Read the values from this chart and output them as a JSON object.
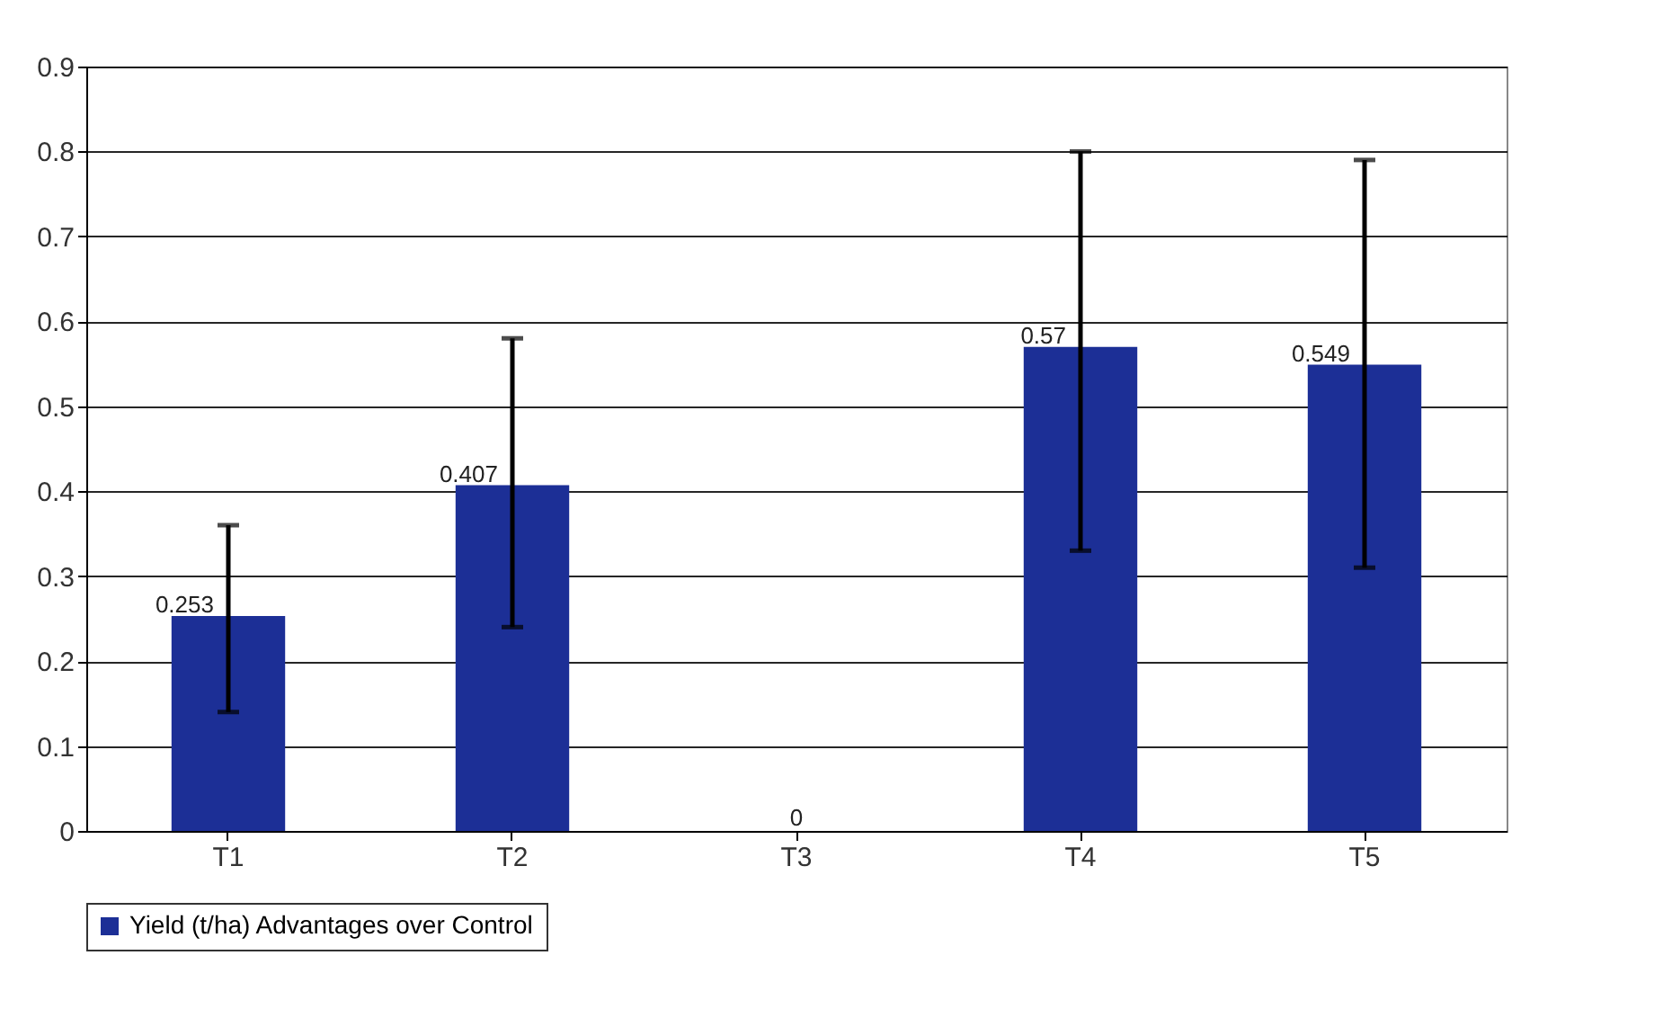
{
  "chart_data": {
    "type": "bar",
    "categories": [
      "T1",
      "T2",
      "T3",
      "T4",
      "T5"
    ],
    "series": [
      {
        "name": "Yield (t/ha) Advantages over Control",
        "color": "#1c2f96",
        "values": [
          0.253,
          0.407,
          0,
          0.57,
          0.549
        ],
        "errors": [
          [
            0.14,
            0.36
          ],
          [
            0.24,
            0.58
          ],
          null,
          [
            0.33,
            0.8
          ],
          [
            0.31,
            0.79
          ]
        ]
      }
    ],
    "ylim": [
      0,
      0.9
    ],
    "yticks": [
      0,
      0.1,
      0.2,
      0.3,
      0.4,
      0.5,
      0.6,
      0.7,
      0.8,
      0.9
    ],
    "grid": "y",
    "legend": "bottom",
    "data_labels": true
  }
}
